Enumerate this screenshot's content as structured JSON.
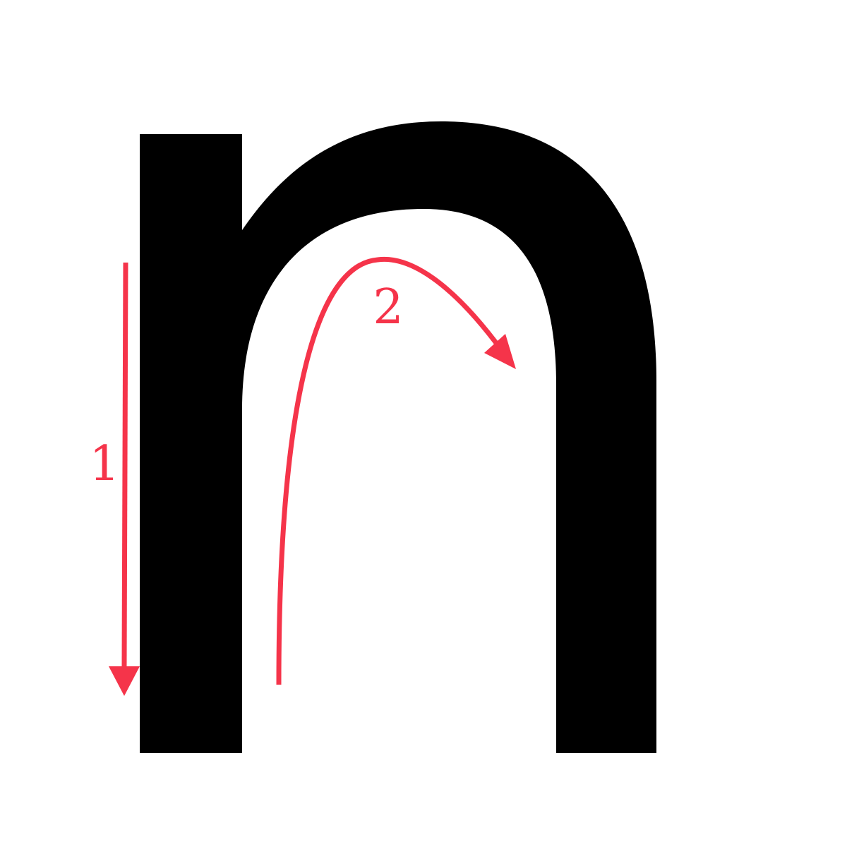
{
  "letter": {
    "character": "n",
    "fill_color": "#000000"
  },
  "strokes": [
    {
      "order_label": "1",
      "direction": "down",
      "color": "#f5344a"
    },
    {
      "order_label": "2",
      "direction": "up-then-over-right",
      "color": "#f5344a"
    }
  ]
}
